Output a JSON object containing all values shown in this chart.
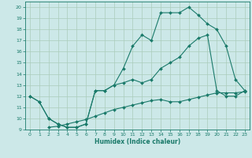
{
  "xlabel": "Humidex (Indice chaleur)",
  "background_color": "#cce8e8",
  "grid_color": "#aaccbb",
  "line_color": "#1a7a6a",
  "xlim": [
    -0.5,
    23.5
  ],
  "ylim": [
    9,
    20.5
  ],
  "xticks": [
    0,
    1,
    2,
    3,
    4,
    5,
    6,
    7,
    8,
    9,
    10,
    11,
    12,
    13,
    14,
    15,
    16,
    17,
    18,
    19,
    20,
    21,
    22,
    23
  ],
  "yticks": [
    9,
    10,
    11,
    12,
    13,
    14,
    15,
    16,
    17,
    18,
    19,
    20
  ],
  "line1_x": [
    0,
    1,
    2,
    3,
    4,
    5,
    6,
    7,
    8,
    9,
    10,
    11,
    12,
    13,
    14,
    15,
    16,
    17,
    18,
    19,
    20,
    21,
    22,
    23
  ],
  "line1_y": [
    12.0,
    11.5,
    10.0,
    9.5,
    9.2,
    9.2,
    9.5,
    12.5,
    12.5,
    13.0,
    14.5,
    16.5,
    17.5,
    17.0,
    19.5,
    19.5,
    19.5,
    20.0,
    19.3,
    18.5,
    18.0,
    16.5,
    13.5,
    12.5
  ],
  "line2_x": [
    0,
    1,
    2,
    3,
    4,
    5,
    6,
    7,
    8,
    9,
    10,
    11,
    12,
    13,
    14,
    15,
    16,
    17,
    18,
    19,
    20,
    21,
    22,
    23
  ],
  "line2_y": [
    12.0,
    11.5,
    10.0,
    9.5,
    9.2,
    9.2,
    9.5,
    12.5,
    12.5,
    13.0,
    13.2,
    13.5,
    13.2,
    13.5,
    14.5,
    15.0,
    15.5,
    16.5,
    17.2,
    17.5,
    12.5,
    12.0,
    12.0,
    12.5
  ],
  "line3_x": [
    2,
    3,
    4,
    5,
    6,
    7,
    8,
    9,
    10,
    11,
    12,
    13,
    14,
    15,
    16,
    17,
    18,
    19,
    20,
    21,
    22,
    23
  ],
  "line3_y": [
    9.2,
    9.3,
    9.5,
    9.7,
    9.9,
    10.2,
    10.5,
    10.8,
    11.0,
    11.2,
    11.4,
    11.6,
    11.7,
    11.5,
    11.5,
    11.7,
    11.9,
    12.1,
    12.3,
    12.3,
    12.3,
    12.4
  ]
}
